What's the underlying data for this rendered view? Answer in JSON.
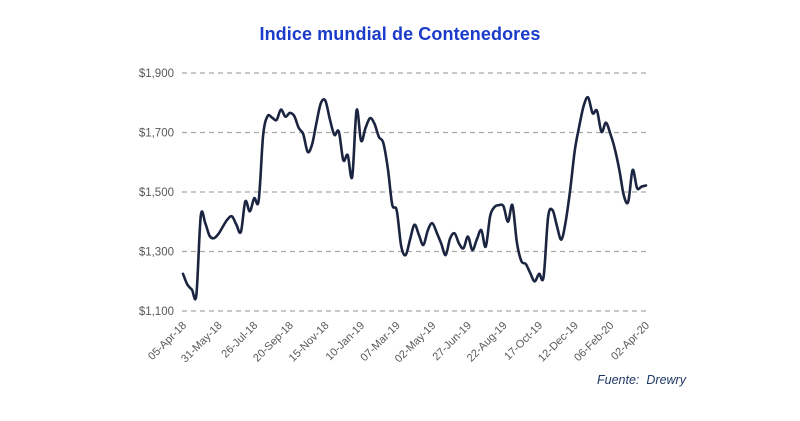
{
  "page": {
    "background_color": "#ffffff"
  },
  "chart": {
    "title": "Indice mundial de Contenedores",
    "title_color": "#1b3bcb",
    "source": {
      "label": "Fuente:",
      "name": "Drewry",
      "color": "#1f3864"
    }
  },
  "style": {
    "line_color": "#1b2440",
    "gridline_color": "#a8a8a8",
    "axis_label_color": "#595959"
  },
  "chart_data": {
    "type": "line",
    "title": "Indice mundial de Contenedores",
    "xlabel": "",
    "ylabel": "",
    "ylim": [
      1100,
      1900
    ],
    "y_tick_step": 200,
    "y_tick_labels": [
      "$1,900",
      "$1,700",
      "$1,500",
      "$1,300",
      "$1,100"
    ],
    "grid": "horizontal-dashed",
    "legend": "none",
    "frequency": "weekly",
    "x_start": "05-Apr-18",
    "x_end": "02-Apr-20",
    "x_tick_every_n_points": 8,
    "x_tick_labels": [
      "05-Apr-18",
      "31-May-18",
      "26-Jul-18",
      "20-Sep-18",
      "15-Nov-18",
      "10-Jan-19",
      "07-Mar-19",
      "02-May-19",
      "27-Jun-19",
      "22-Aug-19",
      "17-Oct-19",
      "12-Dec-19",
      "06-Feb-20",
      "02-Apr-20"
    ],
    "series": [
      {
        "name": "Indice mundial de Contenedores",
        "color": "#1b2440",
        "values": [
          1225,
          1188,
          1172,
          1155,
          1420,
          1395,
          1352,
          1345,
          1360,
          1385,
          1408,
          1418,
          1390,
          1366,
          1468,
          1435,
          1479,
          1472,
          1690,
          1755,
          1750,
          1742,
          1777,
          1753,
          1766,
          1755,
          1715,
          1695,
          1635,
          1660,
          1735,
          1800,
          1806,
          1744,
          1692,
          1703,
          1607,
          1624,
          1551,
          1775,
          1672,
          1715,
          1748,
          1730,
          1685,
          1665,
          1580,
          1458,
          1438,
          1320,
          1288,
          1340,
          1390,
          1355,
          1322,
          1372,
          1395,
          1363,
          1327,
          1288,
          1344,
          1361,
          1327,
          1311,
          1350,
          1305,
          1340,
          1372,
          1316,
          1420,
          1450,
          1456,
          1452,
          1400,
          1456,
          1330,
          1268,
          1258,
          1227,
          1200,
          1225,
          1215,
          1415,
          1439,
          1385,
          1340,
          1405,
          1510,
          1640,
          1720,
          1790,
          1818,
          1765,
          1773,
          1702,
          1733,
          1695,
          1645,
          1575,
          1490,
          1467,
          1574,
          1513,
          1518,
          1522
        ]
      }
    ]
  }
}
